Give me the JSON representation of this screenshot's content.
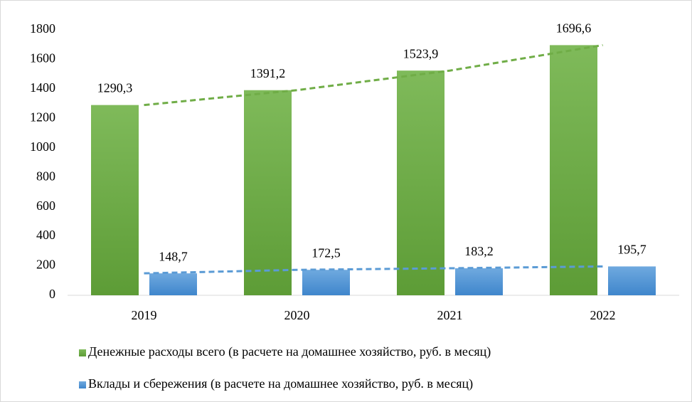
{
  "chart_data": {
    "type": "bar",
    "categories": [
      "2019",
      "2020",
      "2021",
      "2022"
    ],
    "series": [
      {
        "name": "Денежные расходы всего (в расчете на домашнее хозяйство, руб. в месяц)",
        "color": "#70ad47",
        "values": [
          1290.3,
          1391.2,
          1523.9,
          1696.6
        ],
        "value_labels": [
          "1290,3",
          "1391,2",
          "1523,9",
          "1696,6"
        ]
      },
      {
        "name": "Вклады и сбережения (в расчете на домашнее хозяйство, руб. в месяц)",
        "color": "#5b9bd5",
        "values": [
          148.7,
          172.5,
          183.2,
          195.7
        ],
        "value_labels": [
          "148,7",
          "172,5",
          "183,2",
          "195,7"
        ]
      }
    ],
    "ylim": [
      0,
      1800
    ],
    "yticks": [
      0,
      200,
      400,
      600,
      800,
      1000,
      1200,
      1400,
      1600,
      1800
    ],
    "trendline": true,
    "legend": "bottom"
  }
}
